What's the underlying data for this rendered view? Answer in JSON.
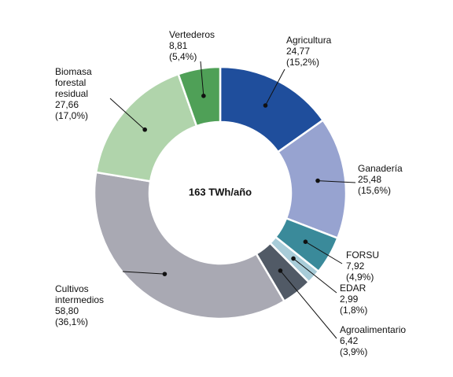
{
  "chart_data": {
    "type": "donut",
    "center_label": "163 TWh/año",
    "categories": [
      "Agricultura",
      "Ganadería",
      "FORSU",
      "EDAR",
      "Agroalimentario",
      "Cultivos intermedios",
      "Biomasa forestal residual",
      "Vertederos"
    ],
    "values": [
      24.77,
      25.48,
      7.92,
      2.99,
      6.42,
      58.8,
      27.66,
      8.81
    ],
    "value_labels": [
      "24,77",
      "25,48",
      "7,92",
      "2,99",
      "6,42",
      "58,80",
      "27,66",
      "8,81"
    ],
    "shares": [
      15.2,
      15.6,
      4.9,
      1.8,
      3.9,
      36.1,
      17.0,
      5.4
    ],
    "share_labels": [
      "(15,2%)",
      "(15,6%)",
      "(4,9%)",
      "(1,8%)",
      "(3,9%)",
      "(36,1%)",
      "(17,0%)",
      "(5,4%)"
    ],
    "colors": [
      "#1f4e9c",
      "#97a3d0",
      "#3a8a9a",
      "#a8ccd8",
      "#515a66",
      "#a9a9b3",
      "#b0d4ab",
      "#4fa057"
    ]
  }
}
